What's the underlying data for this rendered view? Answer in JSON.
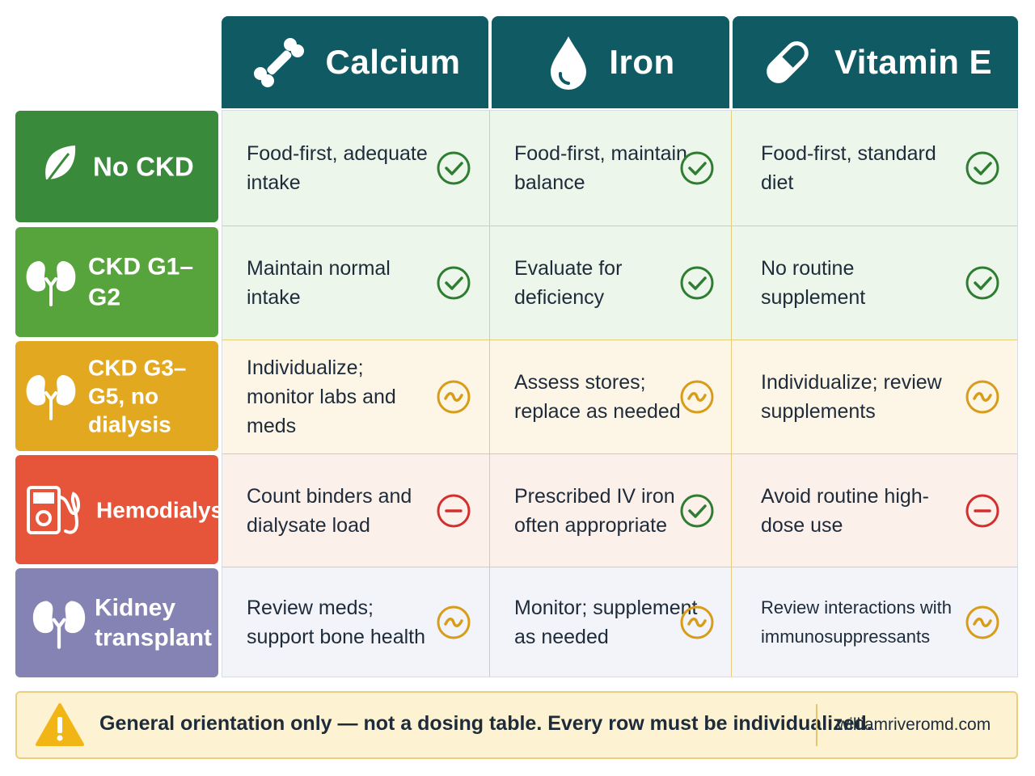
{
  "columns": [
    {
      "label": "Calcium",
      "icon": "bone-icon"
    },
    {
      "label": "Iron",
      "icon": "droplet-icon"
    },
    {
      "label": "Vitamin E",
      "icon": "capsule-icon"
    }
  ],
  "rows": [
    {
      "label": "No CKD",
      "icon": "leaf-icon",
      "color": "#3a8a3c",
      "cells": [
        {
          "text": "Food-first, adequate intake",
          "status": "check"
        },
        {
          "text": "Food-first, maintain balance",
          "status": "check"
        },
        {
          "text": "Food-first, standard diet",
          "status": "check"
        }
      ]
    },
    {
      "label": "CKD G1–G2",
      "icon": "kidney-icon",
      "color": "#57a33c",
      "cells": [
        {
          "text": "Maintain normal intake",
          "status": "check"
        },
        {
          "text": "Evaluate for deficiency",
          "status": "check"
        },
        {
          "text": "No routine supplement",
          "status": "check"
        }
      ]
    },
    {
      "label": "CKD G3–G5, no dialysis",
      "icon": "kidney-icon",
      "color": "#e1a820",
      "cells": [
        {
          "text": "Individualize; monitor labs and meds",
          "status": "caution"
        },
        {
          "text": "Assess stores; replace as needed",
          "status": "caution"
        },
        {
          "text": "Individualize; review supplements",
          "status": "caution"
        }
      ]
    },
    {
      "label": "Hemodialysis",
      "icon": "dialysis-machine-icon",
      "color": "#e6553a",
      "cells": [
        {
          "text": "Count binders and dialysate load",
          "status": "avoid"
        },
        {
          "text": "Prescribed IV iron often appropriate",
          "status": "check"
        },
        {
          "text": "Avoid routine high-dose use",
          "status": "avoid"
        }
      ]
    },
    {
      "label": "Kidney transplant",
      "icon": "kidney-icon",
      "color": "#8483b3",
      "cells": [
        {
          "text": "Review meds; support bone health",
          "status": "caution"
        },
        {
          "text": "Monitor; supplement as needed",
          "status": "caution"
        },
        {
          "text": "Review interactions with immunosuppressants",
          "status": "caution"
        }
      ]
    }
  ],
  "status_colors": {
    "check": "#2e7d32",
    "caution": "#d79d1a",
    "avoid": "#d32f2f"
  },
  "footer": {
    "note": "General orientation only — not a dosing table. Every row must be individualized.",
    "site": "williamriveromd.com",
    "icon": "warning-icon"
  }
}
